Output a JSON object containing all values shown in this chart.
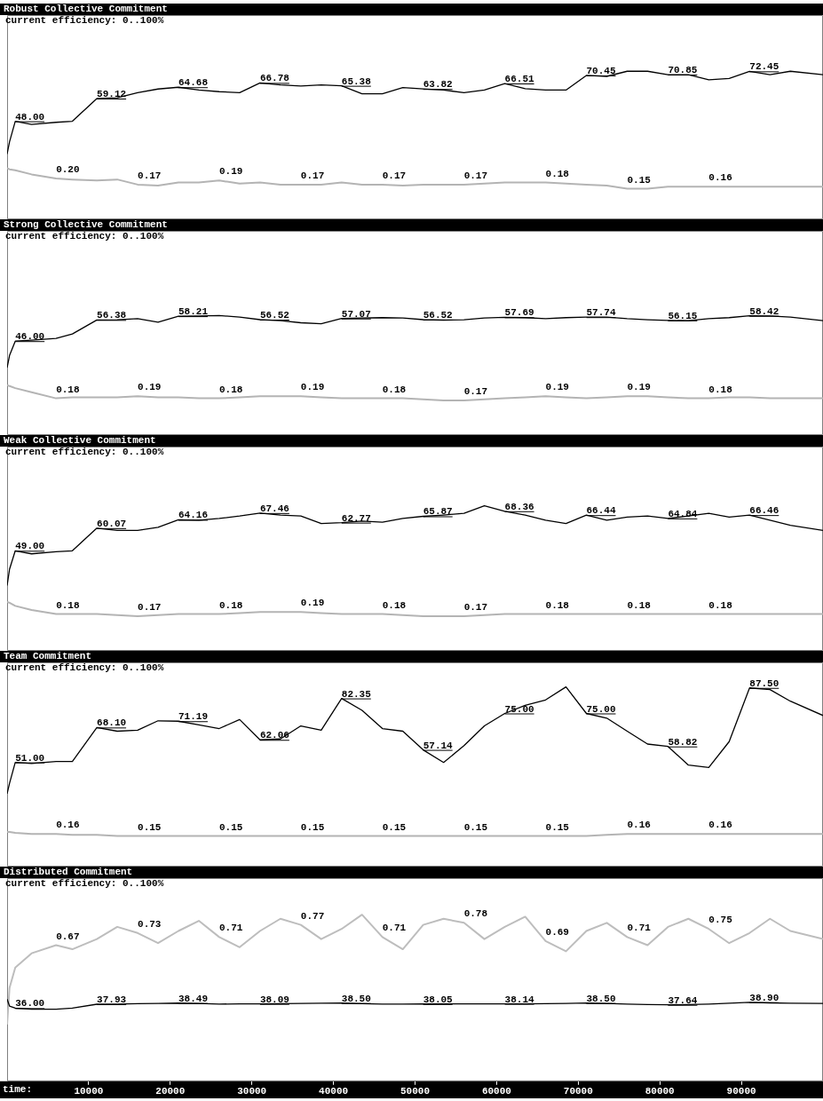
{
  "chart_data": [
    {
      "type": "line",
      "title": "Robust Collective Commitment",
      "subtitle": "current efficiency: 0..100%",
      "x": [
        0,
        300,
        1000,
        3000,
        6000,
        8000,
        11000,
        13500,
        16000,
        18500,
        21000,
        23500,
        26000,
        28500,
        31000,
        33500,
        36000,
        38500,
        41000,
        43500,
        46000,
        48500,
        51000,
        53500,
        56000,
        58500,
        61000,
        63500,
        66000,
        68500,
        71000,
        73500,
        76000,
        78500,
        81000,
        83500,
        86000,
        88500,
        91000,
        93500,
        96000,
        100000
      ],
      "xlim": [
        0,
        100000
      ],
      "ylim": [
        0,
        100
      ],
      "y2lim": [
        0,
        1
      ],
      "tick_labels": false,
      "series": [
        {
          "color": "#000000",
          "values": [
            32,
            38,
            48,
            46.5,
            47.5,
            48,
            59.12,
            59.5,
            62,
            63.8,
            64.68,
            63.3,
            62.5,
            62,
            66.78,
            65.8,
            65.3,
            65.8,
            65.38,
            61.5,
            61.5,
            64.5,
            63.82,
            63.3,
            62,
            63.3,
            66.51,
            64,
            63.3,
            63.3,
            70.45,
            70,
            72.5,
            72.5,
            70.85,
            70.8,
            68.3,
            69,
            72.45,
            70.8,
            72.5,
            70.8
          ],
          "value_labels": [
            null,
            null,
            "48.00",
            null,
            null,
            null,
            "59.12",
            null,
            null,
            null,
            "64.68",
            null,
            null,
            null,
            "66.78",
            null,
            null,
            null,
            "65.38",
            null,
            null,
            null,
            "63.82",
            null,
            null,
            null,
            "66.51",
            null,
            null,
            null,
            "70.45",
            null,
            null,
            null,
            "70.85",
            null,
            null,
            null,
            "72.45",
            null,
            null,
            null
          ]
        },
        {
          "color": "#b4b4b4",
          "axis": "y2",
          "values": [
            0.25,
            0.245,
            0.24,
            0.22,
            0.2,
            0.195,
            0.19,
            0.195,
            0.17,
            0.165,
            0.18,
            0.18,
            0.19,
            0.175,
            0.18,
            0.17,
            0.17,
            0.17,
            0.18,
            0.17,
            0.17,
            0.165,
            0.17,
            0.17,
            0.17,
            0.175,
            0.18,
            0.18,
            0.18,
            0.175,
            0.17,
            0.165,
            0.15,
            0.15,
            0.16,
            0.16,
            0.16,
            0.16,
            0.16,
            0.16,
            0.16,
            0.16
          ],
          "value_labels": [
            null,
            null,
            null,
            null,
            "0.20",
            null,
            null,
            null,
            "0.17",
            null,
            null,
            null,
            "0.19",
            null,
            null,
            null,
            "0.17",
            null,
            null,
            null,
            "0.17",
            null,
            null,
            null,
            "0.17",
            null,
            null,
            null,
            "0.18",
            null,
            null,
            null,
            "0.15",
            null,
            null,
            null,
            "0.16",
            null,
            null,
            null,
            null,
            null
          ]
        }
      ]
    },
    {
      "type": "line",
      "title": "Strong Collective Commitment",
      "subtitle": "current efficiency: 0..100%",
      "x": [
        0,
        300,
        1000,
        3000,
        6000,
        8000,
        11000,
        13500,
        16000,
        18500,
        21000,
        23500,
        26000,
        28500,
        31000,
        33500,
        36000,
        38500,
        41000,
        43500,
        46000,
        48500,
        51000,
        53500,
        56000,
        58500,
        61000,
        63500,
        66000,
        68500,
        71000,
        73500,
        76000,
        78500,
        81000,
        83500,
        86000,
        88500,
        91000,
        93500,
        96000,
        100000
      ],
      "xlim": [
        0,
        100000
      ],
      "ylim": [
        0,
        100
      ],
      "y2lim": [
        0,
        1
      ],
      "tick_labels": false,
      "series": [
        {
          "color": "#000000",
          "values": [
            33,
            39,
            46,
            46.5,
            47.3,
            49.5,
            56.38,
            56.5,
            57,
            55.3,
            58.21,
            58.3,
            58.5,
            57.8,
            56.52,
            56,
            55,
            54.5,
            57.07,
            57.3,
            57.5,
            57.3,
            56.52,
            56.3,
            56.5,
            57.3,
            57.69,
            57.5,
            57,
            57.5,
            57.74,
            57.8,
            57,
            56.5,
            56.15,
            56,
            57,
            57.5,
            58.42,
            58.3,
            57.8,
            56
          ],
          "value_labels": [
            null,
            null,
            "46.00",
            null,
            null,
            null,
            "56.38",
            null,
            null,
            null,
            "58.21",
            null,
            null,
            null,
            "56.52",
            null,
            null,
            null,
            "57.07",
            null,
            null,
            null,
            "56.52",
            null,
            null,
            null,
            "57.69",
            null,
            null,
            null,
            "57.74",
            null,
            null,
            null,
            "56.15",
            null,
            null,
            null,
            "58.42",
            null,
            null,
            null
          ]
        },
        {
          "color": "#b4b4b4",
          "axis": "y2",
          "values": [
            0.245,
            0.24,
            0.23,
            0.21,
            0.18,
            0.185,
            0.185,
            0.185,
            0.19,
            0.185,
            0.185,
            0.18,
            0.18,
            0.185,
            0.19,
            0.19,
            0.19,
            0.185,
            0.18,
            0.18,
            0.18,
            0.18,
            0.175,
            0.17,
            0.17,
            0.175,
            0.18,
            0.185,
            0.19,
            0.185,
            0.18,
            0.185,
            0.19,
            0.19,
            0.185,
            0.18,
            0.18,
            0.185,
            0.185,
            0.18,
            0.18,
            0.18
          ],
          "value_labels": [
            null,
            null,
            null,
            null,
            "0.18",
            null,
            null,
            null,
            "0.19",
            null,
            null,
            null,
            "0.18",
            null,
            null,
            null,
            "0.19",
            null,
            null,
            null,
            "0.18",
            null,
            null,
            null,
            "0.17",
            null,
            null,
            null,
            "0.19",
            null,
            null,
            null,
            "0.19",
            null,
            null,
            null,
            "0.18",
            null,
            null,
            null,
            null,
            null
          ]
        }
      ]
    },
    {
      "type": "line",
      "title": "Weak Collective Commitment",
      "subtitle": "current efficiency: 0..100%",
      "x": [
        0,
        300,
        1000,
        3000,
        6000,
        8000,
        11000,
        13500,
        16000,
        18500,
        21000,
        23500,
        26000,
        28500,
        31000,
        33500,
        36000,
        38500,
        41000,
        43500,
        46000,
        48500,
        51000,
        53500,
        56000,
        58500,
        61000,
        63500,
        66000,
        68500,
        71000,
        73500,
        76000,
        78500,
        81000,
        83500,
        86000,
        88500,
        91000,
        93500,
        96000,
        100000
      ],
      "xlim": [
        0,
        100000
      ],
      "ylim": [
        0,
        100
      ],
      "y2lim": [
        0,
        1
      ],
      "tick_labels": false,
      "series": [
        {
          "color": "#000000",
          "values": [
            32,
            40,
            49,
            47.5,
            48.5,
            49,
            60.07,
            59,
            59,
            60.5,
            64.16,
            64,
            64.8,
            66,
            67.46,
            66.5,
            66,
            62.3,
            62.77,
            63.5,
            63,
            64.8,
            65.87,
            66.5,
            67.3,
            71,
            68.36,
            66.5,
            64,
            62.3,
            66.44,
            64,
            65.5,
            66,
            64.84,
            66,
            67.3,
            65.5,
            66.46,
            64,
            61.5,
            59
          ],
          "value_labels": [
            null,
            null,
            "49.00",
            null,
            null,
            null,
            "60.07",
            null,
            null,
            null,
            "64.16",
            null,
            null,
            null,
            "67.46",
            null,
            null,
            null,
            "62.77",
            null,
            null,
            null,
            "65.87",
            null,
            null,
            null,
            "68.36",
            null,
            null,
            null,
            "66.44",
            null,
            null,
            null,
            "64.84",
            null,
            null,
            null,
            "66.46",
            null,
            null,
            null
          ]
        },
        {
          "color": "#b4b4b4",
          "axis": "y2",
          "values": [
            0.24,
            0.235,
            0.22,
            0.2,
            0.18,
            0.18,
            0.18,
            0.175,
            0.17,
            0.175,
            0.18,
            0.18,
            0.18,
            0.185,
            0.19,
            0.19,
            0.19,
            0.185,
            0.18,
            0.18,
            0.18,
            0.175,
            0.17,
            0.17,
            0.17,
            0.175,
            0.18,
            0.18,
            0.18,
            0.18,
            0.18,
            0.18,
            0.18,
            0.18,
            0.18,
            0.18,
            0.18,
            0.18,
            0.18,
            0.18,
            0.18,
            0.18
          ],
          "value_labels": [
            null,
            null,
            null,
            null,
            "0.18",
            null,
            null,
            null,
            "0.17",
            null,
            null,
            null,
            "0.18",
            null,
            null,
            null,
            "0.19",
            null,
            null,
            null,
            "0.18",
            null,
            null,
            null,
            "0.17",
            null,
            null,
            null,
            "0.18",
            null,
            null,
            null,
            "0.18",
            null,
            null,
            null,
            "0.18",
            null,
            null,
            null,
            null,
            null
          ]
        }
      ]
    },
    {
      "type": "line",
      "title": "Team Commitment",
      "subtitle": "current efficiency: 0..100%",
      "x": [
        0,
        300,
        1000,
        3000,
        6000,
        8000,
        11000,
        13500,
        16000,
        18500,
        21000,
        23500,
        26000,
        28500,
        31000,
        33500,
        36000,
        38500,
        41000,
        43500,
        46000,
        48500,
        51000,
        53500,
        56000,
        58500,
        61000,
        63500,
        66000,
        68500,
        71000,
        73500,
        76000,
        78500,
        81000,
        83500,
        86000,
        88500,
        91000,
        93500,
        96000,
        100000
      ],
      "xlim": [
        0,
        100000
      ],
      "ylim": [
        0,
        100
      ],
      "y2lim": [
        0,
        1
      ],
      "tick_labels": false,
      "series": [
        {
          "color": "#000000",
          "values": [
            35.7,
            40.8,
            51,
            50.5,
            51.5,
            51.5,
            68.1,
            66.3,
            66.8,
            71.4,
            71.19,
            69.4,
            67.6,
            72,
            62.06,
            62.5,
            68.9,
            66.8,
            82.35,
            76.5,
            67.6,
            66.3,
            57.14,
            51,
            59.2,
            68.9,
            75,
            79,
            81.6,
            88,
            75,
            72.7,
            66.3,
            60,
            58.82,
            49.7,
            48.5,
            61.2,
            87.5,
            86.7,
            81,
            74
          ],
          "value_labels": [
            null,
            null,
            "51.00",
            null,
            null,
            null,
            "68.10",
            null,
            null,
            null,
            "71.19",
            null,
            null,
            null,
            "62.06",
            null,
            null,
            null,
            "82.35",
            null,
            null,
            null,
            "57.14",
            null,
            null,
            null,
            "75.00",
            null,
            null,
            null,
            "75.00",
            null,
            null,
            null,
            "58.82",
            null,
            null,
            null,
            "87.50",
            null,
            null,
            null
          ]
        },
        {
          "color": "#b4b4b4",
          "axis": "y2",
          "values": [
            0.17,
            0.17,
            0.165,
            0.16,
            0.16,
            0.155,
            0.155,
            0.15,
            0.15,
            0.15,
            0.15,
            0.15,
            0.15,
            0.15,
            0.15,
            0.15,
            0.15,
            0.15,
            0.15,
            0.15,
            0.15,
            0.15,
            0.15,
            0.15,
            0.15,
            0.15,
            0.15,
            0.15,
            0.15,
            0.15,
            0.15,
            0.155,
            0.16,
            0.16,
            0.16,
            0.16,
            0.16,
            0.16,
            0.16,
            0.16,
            0.16,
            0.16
          ],
          "value_labels": [
            null,
            null,
            null,
            null,
            "0.16",
            null,
            null,
            null,
            "0.15",
            null,
            null,
            null,
            "0.15",
            null,
            null,
            null,
            "0.15",
            null,
            null,
            null,
            "0.15",
            null,
            null,
            null,
            "0.15",
            null,
            null,
            null,
            "0.15",
            null,
            null,
            null,
            "0.16",
            null,
            null,
            null,
            "0.16",
            null,
            null,
            null,
            null,
            null
          ]
        }
      ]
    },
    {
      "type": "line",
      "title": "Distributed Commitment",
      "subtitle": "current efficiency: 0..100%",
      "xlabel": "time:",
      "x": [
        0,
        300,
        1000,
        3000,
        6000,
        8000,
        11000,
        13500,
        16000,
        18500,
        21000,
        23500,
        26000,
        28500,
        31000,
        33500,
        36000,
        38500,
        41000,
        43500,
        46000,
        48500,
        51000,
        53500,
        56000,
        58500,
        61000,
        63500,
        66000,
        68500,
        71000,
        73500,
        76000,
        78500,
        81000,
        83500,
        86000,
        88500,
        91000,
        93500,
        96000,
        100000
      ],
      "xlim": [
        0,
        100000
      ],
      "xticks": [
        10000,
        20000,
        30000,
        40000,
        50000,
        60000,
        70000,
        80000,
        90000
      ],
      "ylim": [
        0,
        100
      ],
      "y2lim": [
        0,
        1
      ],
      "tick_labels": "x",
      "series": [
        {
          "color": "#000000",
          "values": [
            40.5,
            37,
            36,
            35.5,
            35.5,
            36,
            37.93,
            38,
            38.2,
            38.3,
            38.49,
            38.3,
            38,
            38.1,
            38.09,
            38.2,
            38.3,
            38.4,
            38.5,
            38.2,
            38,
            38,
            38.05,
            38.1,
            38.1,
            38.1,
            38.14,
            38.1,
            38.2,
            38.3,
            38.5,
            38.3,
            38,
            37.8,
            37.64,
            37.8,
            38,
            38.4,
            38.9,
            38.6,
            38.4,
            38.3
          ],
          "value_labels": [
            null,
            null,
            "36.00",
            null,
            null,
            null,
            "37.93",
            null,
            null,
            null,
            "38.49",
            null,
            null,
            null,
            "38.09",
            null,
            null,
            null,
            "38.50",
            null,
            null,
            null,
            "38.05",
            null,
            null,
            null,
            "38.14",
            null,
            null,
            null,
            "38.50",
            null,
            null,
            null,
            "37.64",
            null,
            null,
            null,
            "38.90",
            null,
            null,
            null
          ]
        },
        {
          "color": "#bdbdbd",
          "axis": "y2",
          "values": [
            0.28,
            0.46,
            0.56,
            0.63,
            0.67,
            0.65,
            0.7,
            0.76,
            0.73,
            0.68,
            0.74,
            0.79,
            0.71,
            0.66,
            0.74,
            0.8,
            0.77,
            0.7,
            0.75,
            0.82,
            0.71,
            0.65,
            0.77,
            0.8,
            0.78,
            0.7,
            0.76,
            0.81,
            0.69,
            0.64,
            0.74,
            0.78,
            0.71,
            0.67,
            0.76,
            0.8,
            0.75,
            0.68,
            0.73,
            0.8,
            0.74,
            0.7
          ],
          "value_labels": [
            null,
            null,
            null,
            null,
            "0.67",
            null,
            null,
            null,
            "0.73",
            null,
            null,
            null,
            "0.71",
            null,
            null,
            null,
            "0.77",
            null,
            null,
            null,
            "0.71",
            null,
            null,
            null,
            "0.78",
            null,
            null,
            null,
            "0.69",
            null,
            null,
            null,
            "0.71",
            null,
            null,
            null,
            "0.75",
            null,
            null,
            null,
            null,
            null
          ]
        }
      ]
    }
  ]
}
